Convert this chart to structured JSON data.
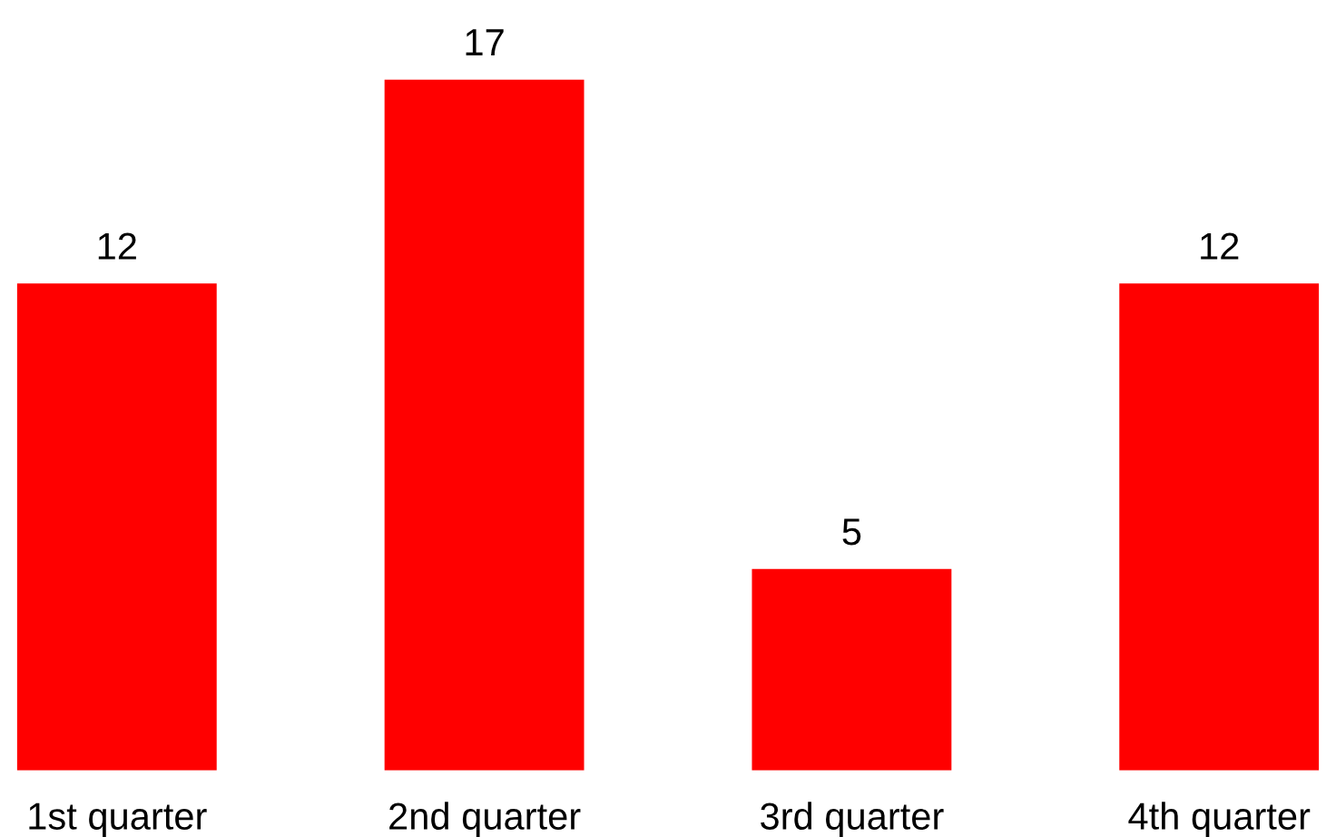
{
  "chart_data": {
    "type": "bar",
    "categories": [
      "1st quarter",
      "2nd quarter",
      "3rd quarter",
      "4th quarter"
    ],
    "values": [
      12,
      17,
      5,
      12
    ],
    "color": "#ff0000",
    "data_labels": true,
    "grid": false
  }
}
